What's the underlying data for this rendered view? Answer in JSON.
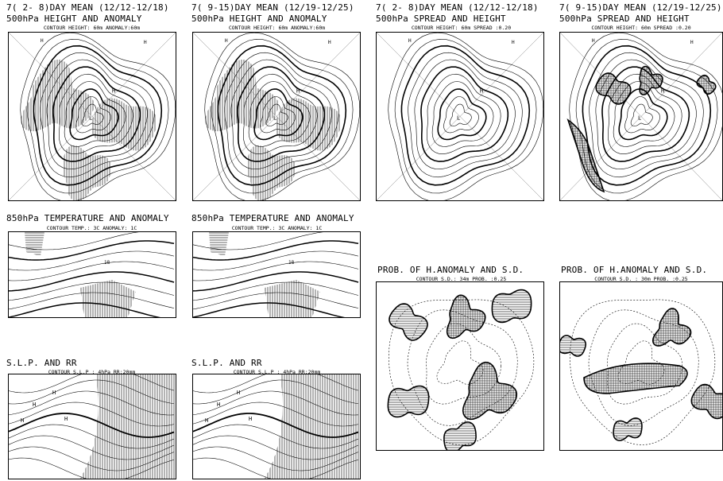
{
  "panels": [
    {
      "id": "p1",
      "line1": "7( 2- 8)DAY MEAN (12/12-12/18)",
      "line2": "500hPa HEIGHT AND ANOMALY",
      "sub": "CONTOUR  HEIGHT: 60m  ANOMALY:60m",
      "type": "polar-height-anomaly"
    },
    {
      "id": "p2",
      "line1": "7( 9-15)DAY MEAN (12/19-12/25)",
      "line2": "500hPa HEIGHT AND ANOMALY",
      "sub": "CONTOUR  HEIGHT: 60m  ANOMALY:60m",
      "type": "polar-height-anomaly"
    },
    {
      "id": "p3",
      "line1": "7( 2- 8)DAY MEAN (12/12-12/18)",
      "line2": "500hPa SPREAD AND HEIGHT",
      "sub": "CONTOUR  HEIGHT: 60m  SPREAD :0.20",
      "type": "polar-spread"
    },
    {
      "id": "p4",
      "line1": "7( 9-15)DAY MEAN (12/19-12/25)",
      "line2": "500hPa SPREAD AND HEIGHT",
      "sub": "CONTOUR  HEIGHT: 60m  SPREAD :0.20",
      "type": "polar-spread"
    },
    {
      "id": "p5",
      "line1": "",
      "line2": "850hPa TEMPERATURE AND ANOMALY",
      "sub": "CONTOUR  TEMP.: 3C  ANOMALY: 1C",
      "type": "regional-temp"
    },
    {
      "id": "p6",
      "line1": "",
      "line2": "850hPa TEMPERATURE AND ANOMALY",
      "sub": "CONTOUR  TEMP.: 3C  ANOMALY: 1C",
      "type": "regional-temp"
    },
    {
      "id": "p7",
      "line1": "",
      "line2": "PROB. OF H.ANOMALY AND S.D.",
      "sub": "CONTOUR  S.D.: 34m  PROB.  :0.25",
      "type": "polar-prob"
    },
    {
      "id": "p8",
      "line1": "",
      "line2": "PROB. OF H.ANOMALY AND S.D.",
      "sub": "CONTOUR  S.D. : 30m  PROB.  :0.25",
      "type": "polar-prob"
    },
    {
      "id": "p9",
      "line1": "",
      "line2": "S.L.P. AND RR",
      "sub": "CONTOUR  S.L.P : 4hPa RR:20mm",
      "type": "regional-slp"
    },
    {
      "id": "p10",
      "line1": "",
      "line2": "S.L.P. AND RR",
      "sub": "CONTOUR  S.L.P : 4hPa RR:20mm",
      "type": "regional-slp"
    }
  ],
  "contour_labels": {
    "height": [
      "5640",
      "5700",
      "5280",
      "5100",
      "5400"
    ],
    "temp": [
      "-6",
      "-18",
      "-30",
      "0",
      "3",
      "-9"
    ],
    "slp": [
      "1020",
      "1016",
      "1008",
      "1000",
      "996"
    ],
    "pressure_marks": [
      "H",
      "L"
    ]
  }
}
